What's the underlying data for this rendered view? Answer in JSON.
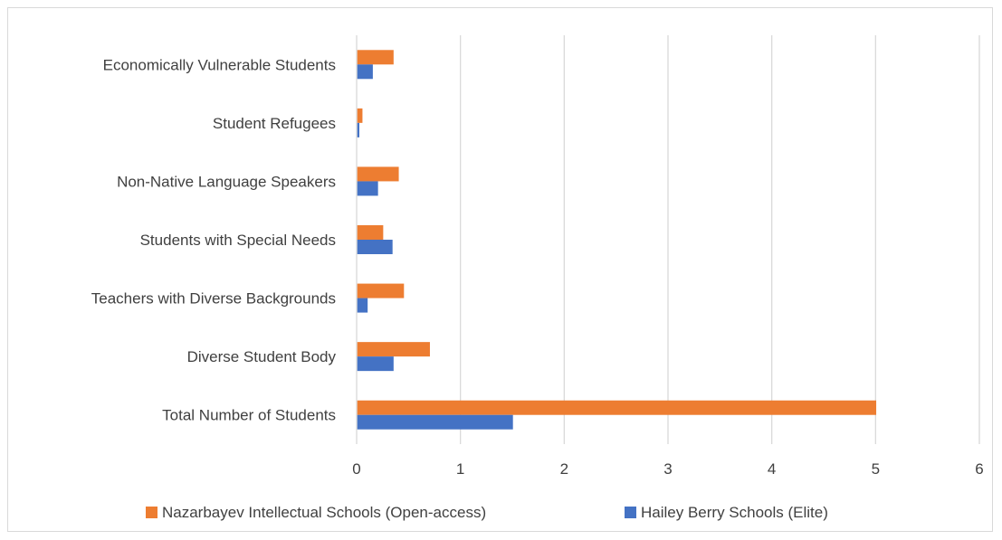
{
  "chart_data": {
    "type": "bar",
    "orientation": "horizontal",
    "categories": [
      "Total Number of Students",
      "Diverse Student Body",
      "Teachers with Diverse Backgrounds",
      "Students with Special Needs",
      "Non-Native Language Speakers",
      "Student Refugees",
      "Economically Vulnerable Students"
    ],
    "series": [
      {
        "name": "Nazarbayev Intellectual Schools (Open-access)",
        "color": "#ED7D31",
        "values": [
          5,
          0.7,
          0.45,
          0.25,
          0.4,
          0.05,
          0.35
        ]
      },
      {
        "name": "Hailey Berry Schools (Elite)",
        "color": "#4472C4",
        "values": [
          1.5,
          0.35,
          0.1,
          0.34,
          0.2,
          0.02,
          0.15
        ]
      }
    ],
    "xlim": [
      0,
      6
    ],
    "xticks": [
      "0",
      "1",
      "2",
      "3",
      "4",
      "5",
      "6"
    ],
    "grid": "vertical",
    "legend": "bottom",
    "gridColor": "#d9d9d9"
  }
}
